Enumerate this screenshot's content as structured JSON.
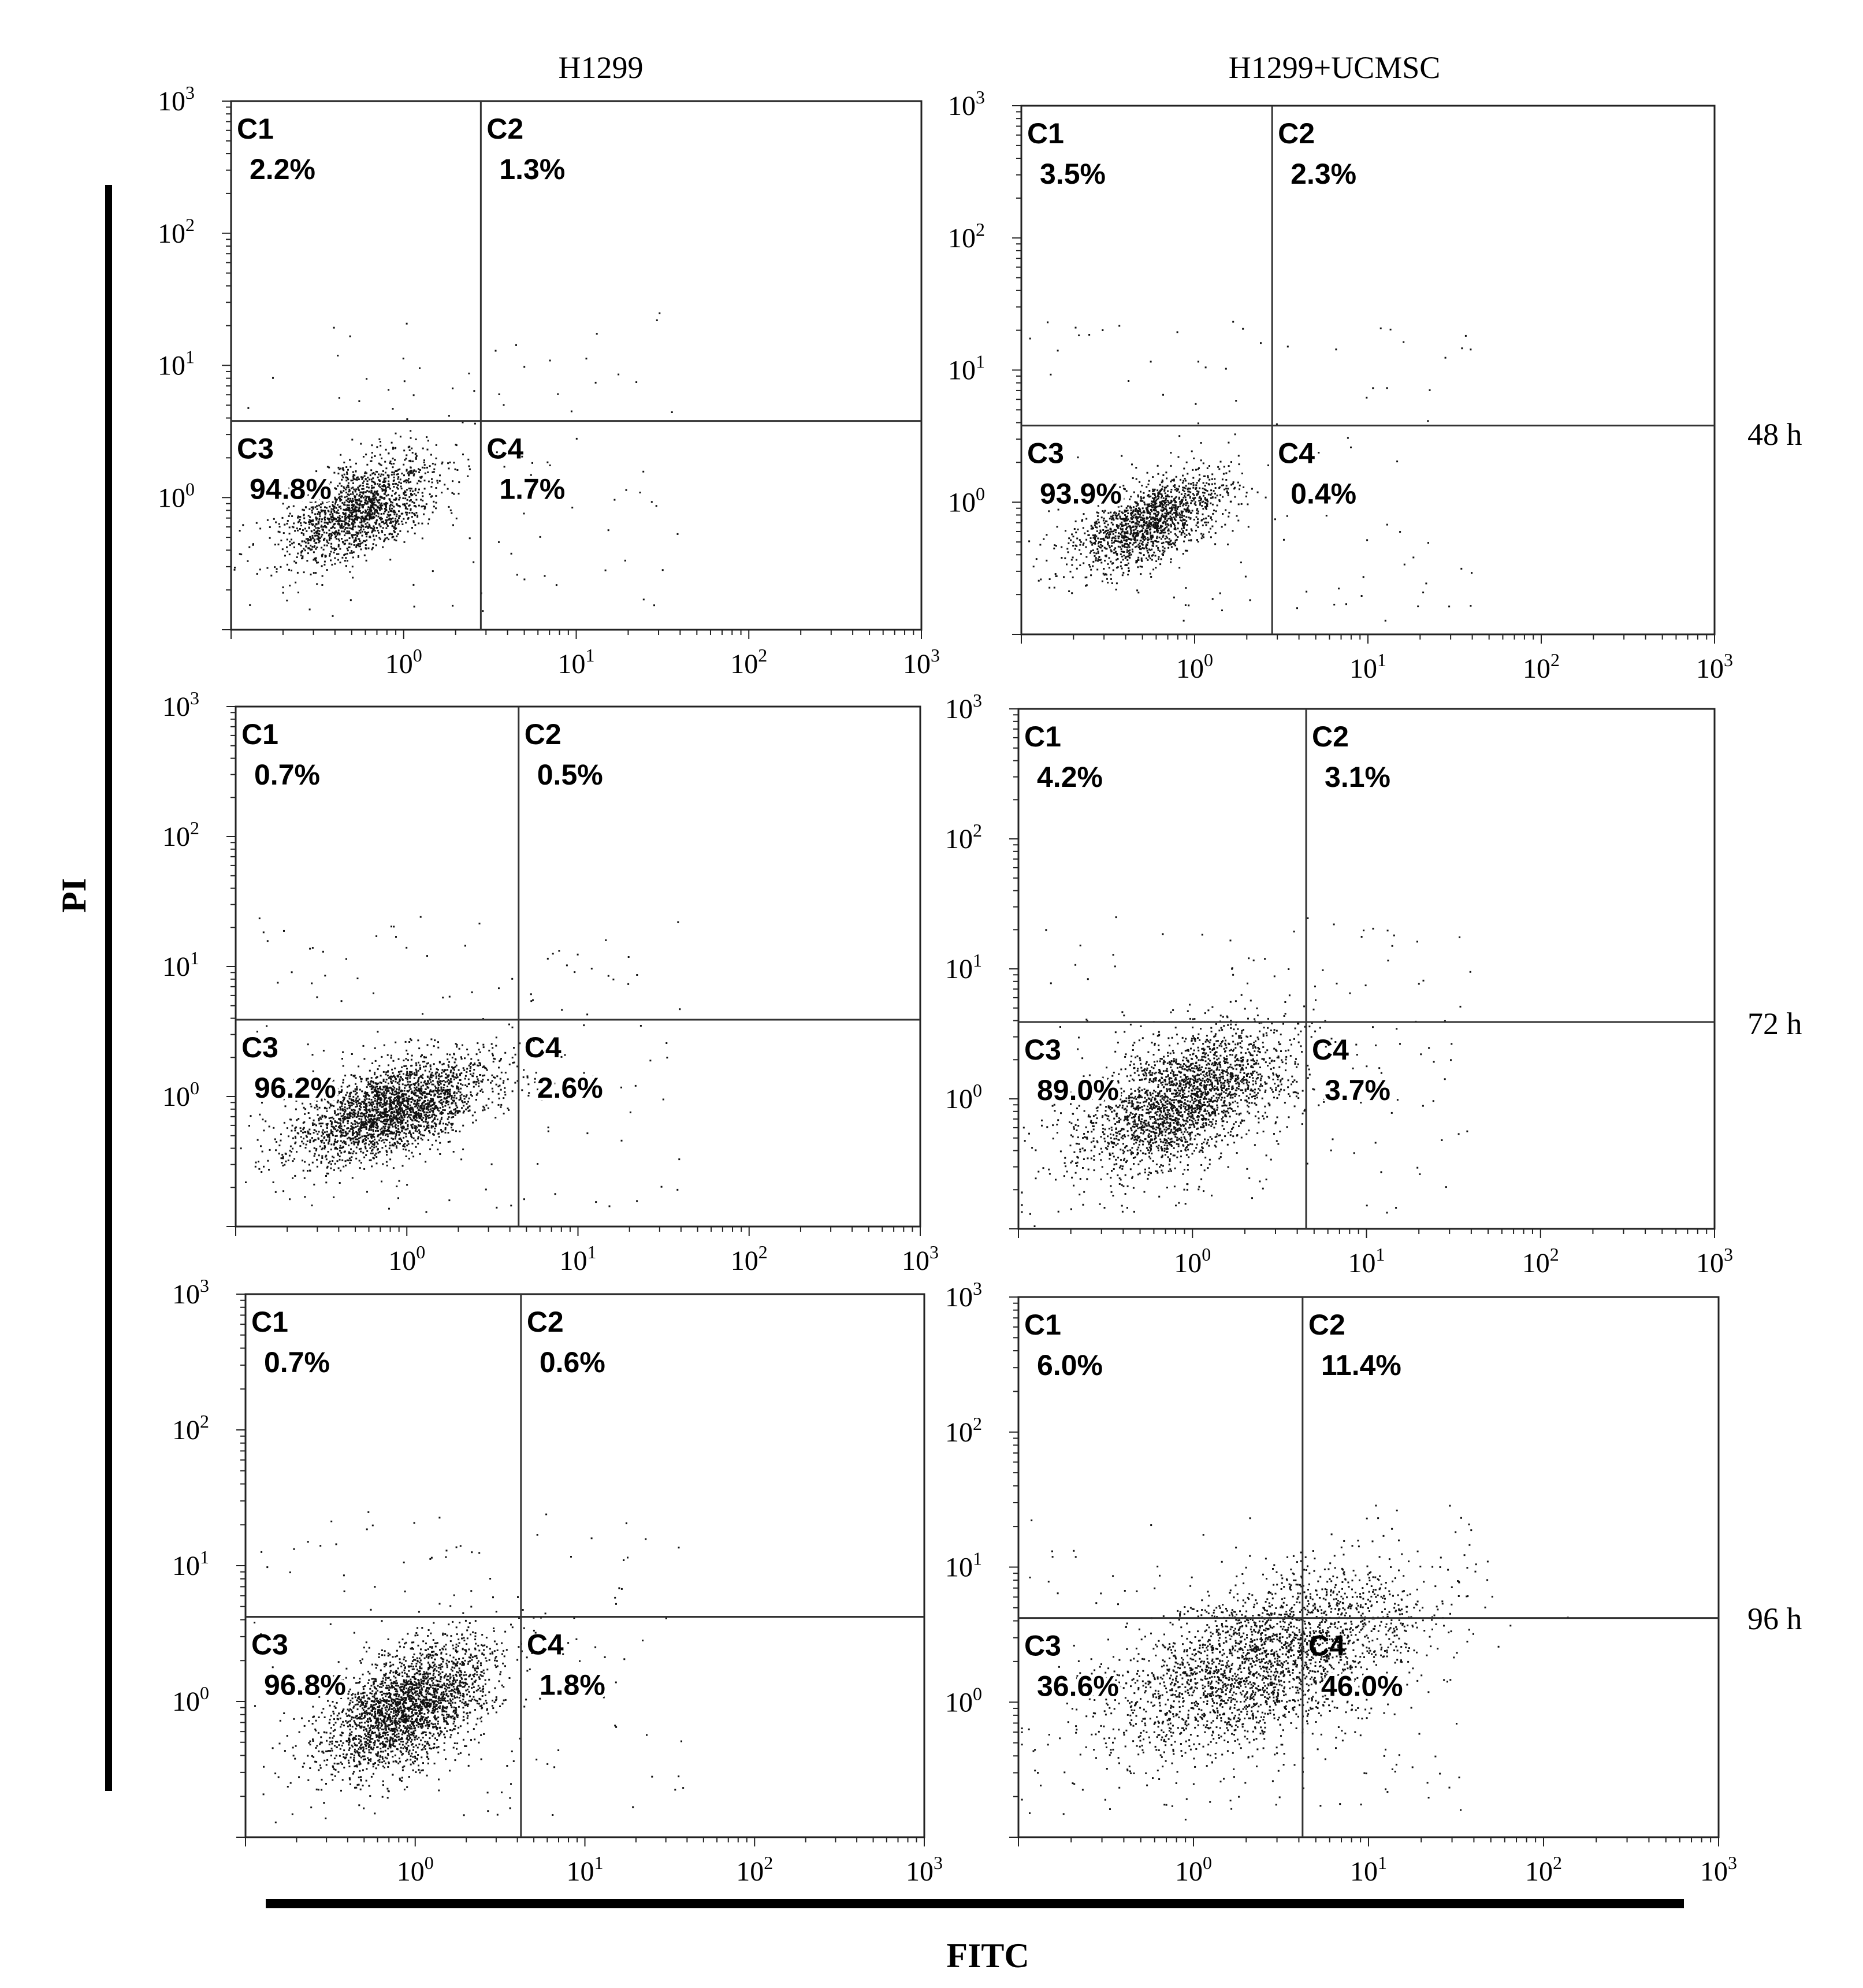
{
  "figure": {
    "column_titles": [
      "H1299",
      "H1299+UCMSC"
    ],
    "row_labels": [
      "48 h",
      "72 h",
      "96 h"
    ],
    "y_axis_label": "PI",
    "x_axis_label": "FITC",
    "axis_tick_labels": [
      {
        "base": "10",
        "exp": "0"
      },
      {
        "base": "10",
        "exp": "1"
      },
      {
        "base": "10",
        "exp": "2"
      },
      {
        "base": "10",
        "exp": "3"
      }
    ],
    "quadrant_names": [
      "C1",
      "C2",
      "C3",
      "C4"
    ]
  },
  "chart_data": [
    {
      "type": "scatter",
      "column": "H1299",
      "row": "48 h",
      "xscale": "log",
      "yscale": "log",
      "xlim": [
        0.1,
        1000
      ],
      "ylim": [
        0.1,
        1000
      ],
      "gate": {
        "x": 2.8,
        "y": 3.8
      },
      "quadrants": {
        "C1": "2.2%",
        "C2": "1.3%",
        "C3": "94.8%",
        "C4": "1.7%"
      },
      "population": {
        "center": [
          0.55,
          0.8
        ],
        "spread": [
          0.22,
          0.2
        ],
        "points": 1700
      }
    },
    {
      "type": "scatter",
      "column": "H1299+UCMSC",
      "row": "48 h",
      "xscale": "log",
      "yscale": "log",
      "xlim": [
        0.1,
        1000
      ],
      "ylim": [
        0.1,
        1000
      ],
      "gate": {
        "x": 2.8,
        "y": 3.8
      },
      "quadrants": {
        "C1": "3.5%",
        "C2": "2.3%",
        "C3": "93.9%",
        "C4": "0.4%"
      },
      "population": {
        "center": [
          0.55,
          0.7
        ],
        "spread": [
          0.22,
          0.18
        ],
        "points": 1600
      }
    },
    {
      "type": "scatter",
      "column": "H1299",
      "row": "72 h",
      "xscale": "log",
      "yscale": "log",
      "xlim": [
        0.1,
        1000
      ],
      "ylim": [
        0.1,
        1000
      ],
      "gate": {
        "x": 4.5,
        "y": 3.9
      },
      "quadrants": {
        "C1": "0.7%",
        "C2": "0.5%",
        "C3": "96.2%",
        "C4": "2.6%"
      },
      "population": {
        "center": [
          0.85,
          0.8
        ],
        "spread": [
          0.28,
          0.2
        ],
        "points": 2600
      }
    },
    {
      "type": "scatter",
      "column": "H1299+UCMSC",
      "row": "72 h",
      "xscale": "log",
      "yscale": "log",
      "xlim": [
        0.1,
        1000
      ],
      "ylim": [
        0.1,
        1000
      ],
      "gate": {
        "x": 4.5,
        "y": 3.9
      },
      "quadrants": {
        "C1": "4.2%",
        "C2": "3.1%",
        "C3": "89.0%",
        "C4": "3.7%"
      },
      "population": {
        "center": [
          0.9,
          1.0
        ],
        "spread": [
          0.3,
          0.28
        ],
        "points": 2600
      }
    },
    {
      "type": "scatter",
      "column": "H1299",
      "row": "96 h",
      "xscale": "log",
      "yscale": "log",
      "xlim": [
        0.1,
        1000
      ],
      "ylim": [
        0.1,
        1000
      ],
      "gate": {
        "x": 4.2,
        "y": 4.2
      },
      "quadrants": {
        "C1": "0.7%",
        "C2": "0.6%",
        "C3": "96.8%",
        "C4": "1.8%"
      },
      "population": {
        "center": [
          0.9,
          0.9
        ],
        "spread": [
          0.25,
          0.25
        ],
        "points": 2600
      }
    },
    {
      "type": "scatter",
      "column": "H1299+UCMSC",
      "row": "96 h",
      "xscale": "log",
      "yscale": "log",
      "xlim": [
        0.1,
        1000
      ],
      "ylim": [
        0.1,
        1000
      ],
      "gate": {
        "x": 4.2,
        "y": 4.2
      },
      "quadrants": {
        "C1": "6.0%",
        "C2": "11.4%",
        "C3": "36.6%",
        "C4": "46.0%"
      },
      "population": {
        "center": [
          2.5,
          2.0
        ],
        "spread": [
          0.45,
          0.35
        ],
        "points": 2800
      }
    }
  ]
}
